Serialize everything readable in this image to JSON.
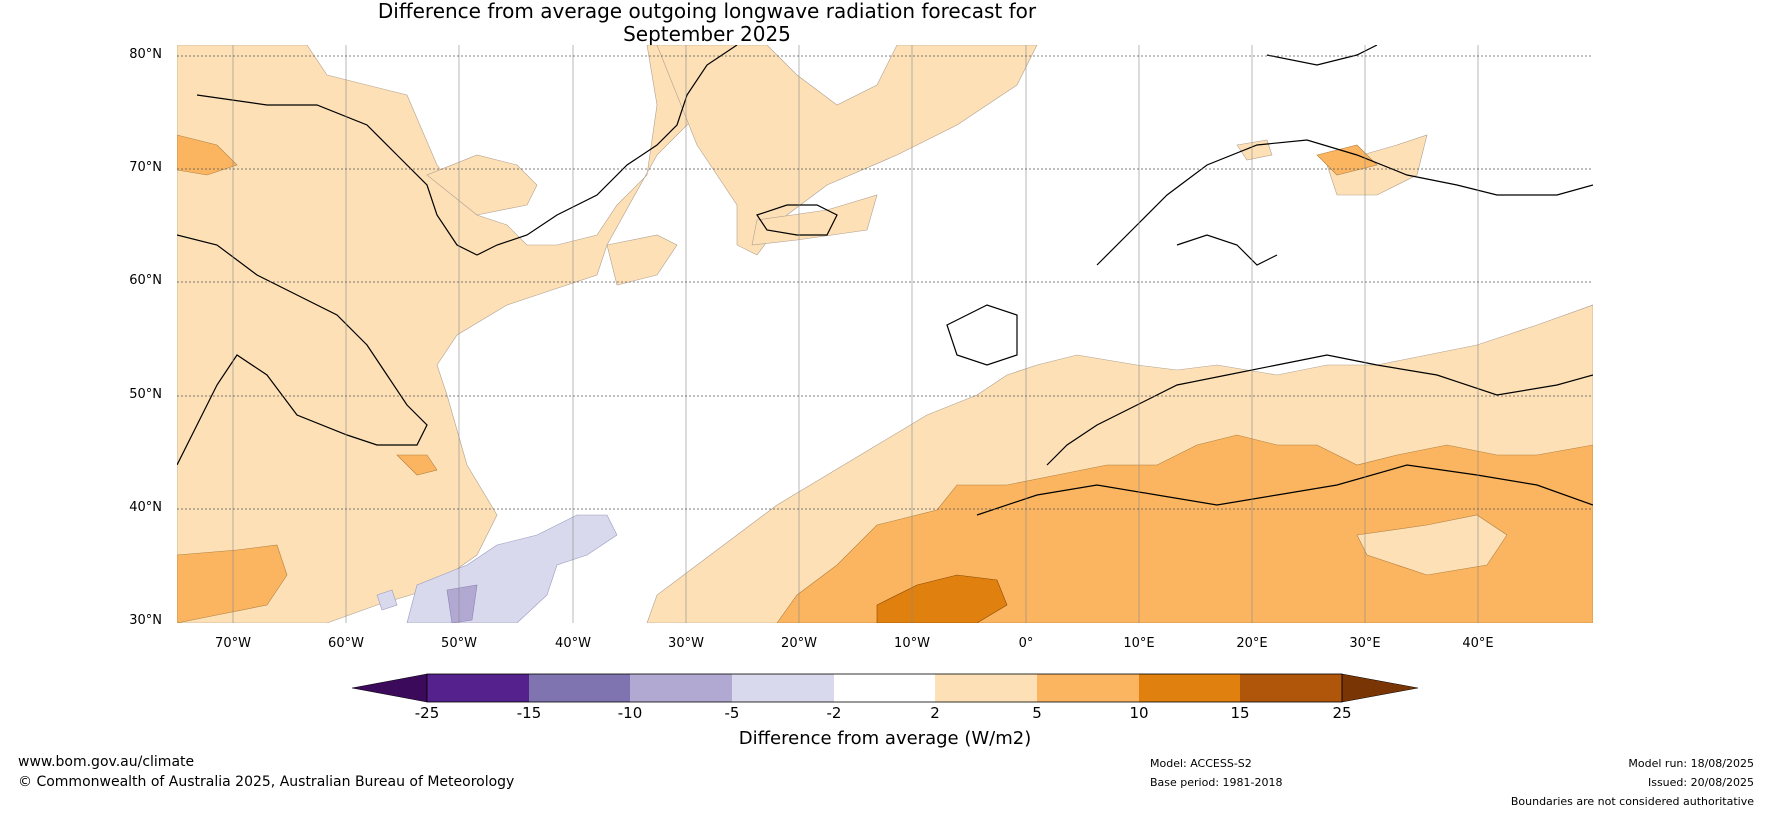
{
  "title_line1": "Difference from average outgoing longwave radiation forecast for",
  "title_line2": "September 2025",
  "map": {
    "lat_labels": [
      "80°N",
      "70°N",
      "60°N",
      "50°N",
      "40°N",
      "30°N"
    ],
    "lon_labels": [
      "70°W",
      "60°W",
      "50°W",
      "40°W",
      "30°W",
      "20°W",
      "10°W",
      "0°",
      "10°E",
      "20°E",
      "30°E",
      "40°E"
    ],
    "colors": {
      "ocean_land_neutral": "#ffffff",
      "light_orange": "#fde0b6",
      "mid_orange": "#fbb561",
      "dark_orange": "#e0800f",
      "light_purple": "#d8d9ec",
      "mid_purple": "#b2a9d3"
    }
  },
  "colorbar": {
    "tick_labels": [
      "-25",
      "-15",
      "-10",
      "-5",
      "-2",
      "2",
      "5",
      "10",
      "15",
      "25"
    ],
    "colors": [
      "#3b0a5a",
      "#54218d",
      "#7f74af",
      "#b2a9d3",
      "#d8d9ec",
      "#ffffff",
      "#fde0b6",
      "#fbb561",
      "#e0800f",
      "#b0560a",
      "#7a3505"
    ],
    "label": "Difference from average (W/m2)"
  },
  "footer": {
    "website": "www.bom.gov.au/climate",
    "copyright": "© Commonwealth of Australia 2025, Australian Bureau of Meteorology",
    "model": "Model: ACCESS-S2",
    "base_period": "Base period: 1981-2018",
    "model_run": "Model run: 18/08/2025",
    "issued": "Issued: 20/08/2025",
    "disclaimer": "Boundaries are not considered authoritative"
  }
}
